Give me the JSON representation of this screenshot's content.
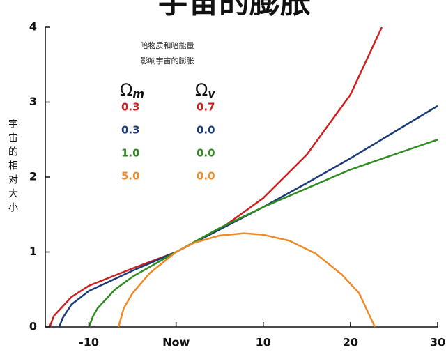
{
  "chart_data": {
    "type": "line",
    "title": "宇宙的膨胀",
    "ylabel": "宇宙的相对大小",
    "annotation": [
      "暗物质和暗能量",
      "影响宇宙的膨胀"
    ],
    "legend_headers": [
      {
        "symbol": "Ω",
        "subscript": "m"
      },
      {
        "symbol": "Ω",
        "subscript": "v"
      }
    ],
    "xlim": [
      -15,
      30
    ],
    "xticks": [
      -10,
      {
        "value": 0,
        "label": "Now"
      },
      10,
      20,
      30
    ],
    "ylim": [
      0,
      4
    ],
    "yticks": [
      0,
      1,
      2,
      3,
      4
    ],
    "series": [
      {
        "omega_m": "0.3",
        "omega_v": "0.7",
        "color": "#cc1f1f",
        "x": [
          -14.5,
          -14,
          -12,
          -10,
          -5,
          0,
          5,
          10,
          15,
          20,
          23.6
        ],
        "values": [
          0,
          0.15,
          0.4,
          0.55,
          0.78,
          1,
          1.3,
          1.72,
          2.3,
          3.1,
          4
        ]
      },
      {
        "omega_m": "0.3",
        "omega_v": "0.0",
        "color": "#1a3a7a",
        "x": [
          -13.4,
          -13,
          -12,
          -10,
          -5,
          0,
          5,
          10,
          15,
          20,
          25,
          30
        ],
        "values": [
          0,
          0.12,
          0.3,
          0.48,
          0.75,
          1,
          1.3,
          1.6,
          1.92,
          2.25,
          2.6,
          2.95
        ]
      },
      {
        "omega_m": "1.0",
        "omega_v": "0.0",
        "color": "#2e8b1e",
        "x": [
          -10,
          -9.5,
          -9,
          -7,
          -5,
          0,
          5,
          10,
          15,
          20,
          25,
          30
        ],
        "values": [
          0,
          0.15,
          0.25,
          0.5,
          0.67,
          1,
          1.32,
          1.6,
          1.85,
          2.1,
          2.3,
          2.5
        ]
      },
      {
        "omega_m": "5.0",
        "omega_v": "0.0",
        "color": "#ee8a2a",
        "x": [
          -6.6,
          -6,
          -5,
          -3,
          0,
          2,
          5,
          7.8,
          10,
          13,
          16,
          19,
          21,
          22.8
        ],
        "values": [
          0,
          0.25,
          0.45,
          0.72,
          1,
          1.12,
          1.22,
          1.25,
          1.23,
          1.15,
          0.98,
          0.7,
          0.45,
          0
        ]
      }
    ]
  }
}
